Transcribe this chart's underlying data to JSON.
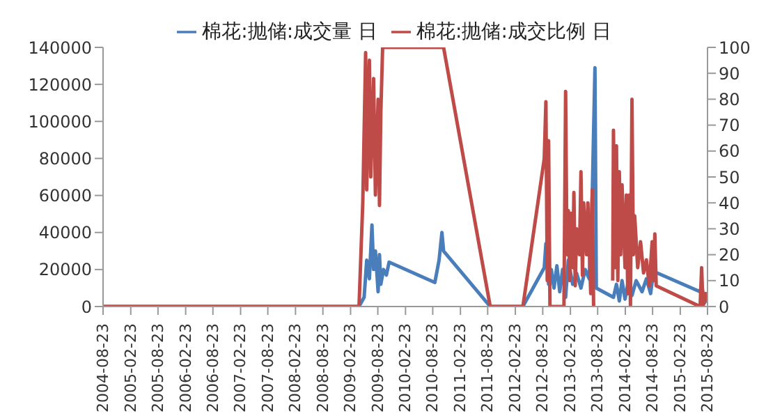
{
  "chart_data": {
    "type": "line",
    "legend": "top",
    "marker": "none",
    "line_style": "solid",
    "xlim": [
      "2004-08-23",
      "2015-08-23"
    ],
    "xticks": [
      "2004-08-23",
      "2005-02-23",
      "2005-08-23",
      "2006-02-23",
      "2006-08-23",
      "2007-02-23",
      "2007-08-23",
      "2008-02-23",
      "2008-08-23",
      "2009-02-23",
      "2009-08-23",
      "2010-02-23",
      "2010-08-23",
      "2011-02-23",
      "2011-08-23",
      "2012-02-23",
      "2012-08-23",
      "2013-02-23",
      "2013-08-23",
      "2014-02-23",
      "2014-08-23",
      "2015-02-23",
      "2015-08-23"
    ],
    "ylim": [
      0,
      140000
    ],
    "yticks": [
      0,
      20000,
      40000,
      60000,
      80000,
      100000,
      120000,
      140000
    ],
    "y2lim": [
      0,
      100
    ],
    "y2ticks": [
      0,
      10,
      20,
      30,
      40,
      50,
      60,
      70,
      80,
      90,
      100
    ],
    "series": [
      {
        "name": "棉花:抛储:成交量 日",
        "color": "#4a7ebb",
        "x": [
          "2004-08-23",
          "2009-04-20",
          "2009-05-24",
          "2009-06-10",
          "2009-06-28",
          "2009-07-15",
          "2009-07-26",
          "2009-08-07",
          "2009-08-25",
          "2009-09-03",
          "2009-09-12",
          "2009-09-30",
          "2009-10-19",
          "2009-11-06",
          "2010-09-06",
          "2010-10-04",
          "2010-10-23",
          "2010-11-03",
          "2011-09-09",
          "2012-04-13",
          "2012-09-02",
          "2012-09-13",
          "2012-10-01",
          "2012-10-19",
          "2012-11-06",
          "2012-11-25",
          "2012-12-14",
          "2013-01-02",
          "2013-01-22",
          "2013-02-09",
          "2013-03-10",
          "2013-04-05",
          "2013-05-04",
          "2013-06-01",
          "2013-06-28",
          "2013-07-18",
          "2013-08-05",
          "2013-08-14",
          "2013-12-06",
          "2013-12-26",
          "2014-01-14",
          "2014-02-01",
          "2014-02-21",
          "2014-03-11",
          "2014-04-08",
          "2014-05-06",
          "2014-06-14",
          "2014-07-13",
          "2014-08-10",
          "2014-08-29",
          "2015-07-05",
          "2015-07-15",
          "2015-08-03",
          "2015-08-23"
        ],
        "values": [
          0,
          0,
          5000,
          25000,
          15000,
          44000,
          20000,
          30000,
          8000,
          28000,
          12000,
          20000,
          17000,
          24000,
          13000,
          25000,
          40000,
          30000,
          0,
          0,
          21000,
          34000,
          12000,
          20000,
          10000,
          22000,
          8000,
          20000,
          5000,
          25000,
          12000,
          18000,
          10000,
          20000,
          15000,
          60000,
          129000,
          10000,
          5000,
          12000,
          3000,
          14000,
          4000,
          12000,
          6000,
          14000,
          8000,
          15000,
          7000,
          19000,
          8000,
          12000,
          2000,
          5000
        ]
      },
      {
        "name": "棉花:抛储:成交比例 日",
        "color": "#be4b48",
        "axis": "y2",
        "x": [
          "2004-08-23",
          "2009-04-20",
          "2009-05-15",
          "2009-06-03",
          "2009-06-10",
          "2009-06-28",
          "2009-07-07",
          "2009-07-26",
          "2009-08-07",
          "2009-08-25",
          "2009-09-03",
          "2009-09-12",
          "2009-09-24",
          "2010-11-03",
          "2011-09-09",
          "2012-04-13",
          "2012-09-02",
          "2012-09-13",
          "2012-09-22",
          "2012-10-01",
          "2012-10-10",
          "2013-01-11",
          "2013-01-22",
          "2013-01-31",
          "2013-02-09",
          "2013-02-18",
          "2013-02-27",
          "2013-03-10",
          "2013-03-18",
          "2013-03-27",
          "2013-04-05",
          "2013-04-24",
          "2013-05-04",
          "2013-05-14",
          "2013-05-22",
          "2013-06-10",
          "2013-06-19",
          "2013-07-08",
          "2013-07-18",
          "2013-07-27",
          "2013-10-01",
          "2013-12-01",
          "2013-12-06",
          "2013-12-16",
          "2013-12-26",
          "2014-01-04",
          "2014-01-14",
          "2014-01-23",
          "2014-02-01",
          "2014-02-21",
          "2014-03-02",
          "2014-03-11",
          "2014-03-21",
          "2014-03-29",
          "2014-04-08",
          "2014-04-17",
          "2014-04-26",
          "2014-05-16",
          "2014-06-04",
          "2014-06-24",
          "2014-07-13",
          "2014-08-01",
          "2014-08-20",
          "2014-08-29",
          "2014-09-07",
          "2014-09-16",
          "2015-07-05",
          "2015-07-15",
          "2015-07-24",
          "2015-08-12",
          "2015-08-23"
        ],
        "values": [
          0,
          0,
          40,
          98,
          45,
          95,
          50,
          88,
          43,
          80,
          39,
          75,
          100,
          100,
          0,
          0,
          57,
          79,
          10,
          64,
          0,
          0,
          83,
          20,
          37,
          10,
          36,
          15,
          44,
          8,
          30,
          20,
          52,
          12,
          40,
          20,
          40,
          5,
          45,
          0,
          null,
          10,
          68,
          15,
          62,
          10,
          52,
          20,
          47,
          15,
          43,
          5,
          43,
          0,
          80,
          20,
          35,
          15,
          25,
          13,
          18,
          8,
          25,
          10,
          28,
          8,
          0,
          15,
          0,
          5,
          2
        ]
      }
    ]
  }
}
